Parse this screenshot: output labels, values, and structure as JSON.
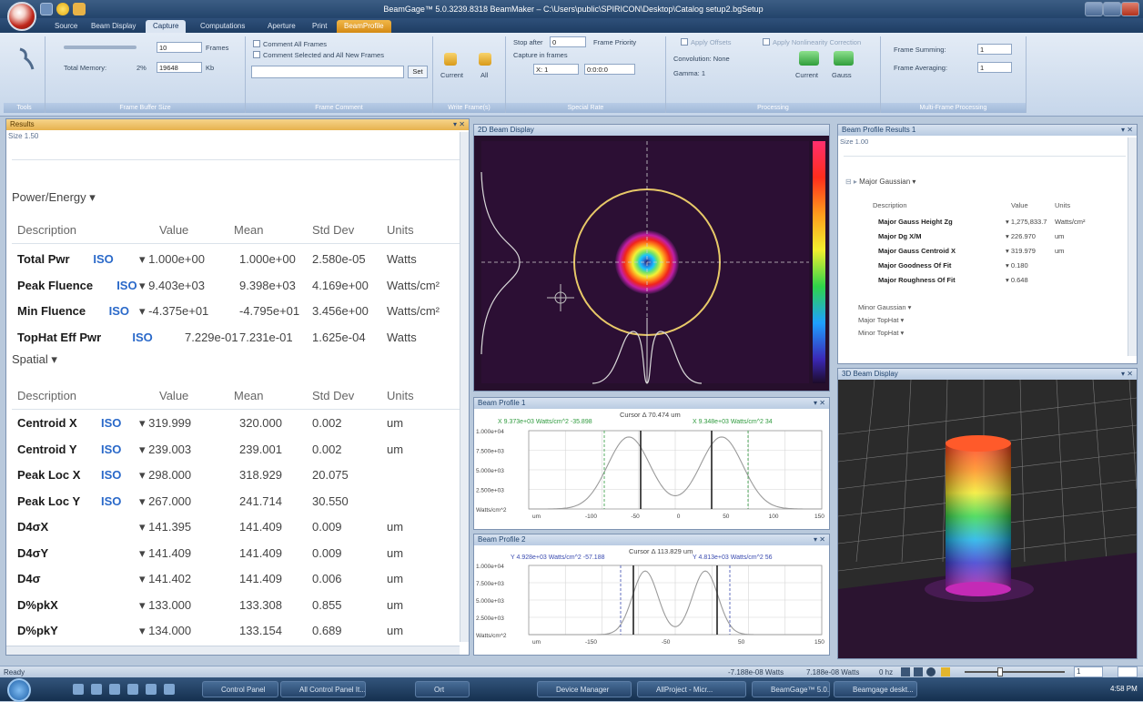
{
  "titlebar": {
    "title": "BeamGage™ 5.0.3239.8318 BeamMaker – C:\\Users\\public\\SPIRICON\\Desktop\\Catalog setup2.bgSetup"
  },
  "tabs": [
    "Source",
    "Beam Display",
    "Capture",
    "Computations",
    "Aperture",
    "Print",
    "BeamProfile"
  ],
  "ribbon": {
    "frames_value": "10",
    "frames_label": "Frames",
    "total_memory_label": "Total Memory:",
    "total_memory_pct": "2%",
    "memory_value": "19648",
    "memory_unit": "Kb",
    "comment_all": "Comment All Frames",
    "comment_selected": "Comment Selected and All New Frames",
    "set_label": "Set",
    "current_label": "Current",
    "all_label": "All",
    "stop_after_label": "Stop after",
    "stop_after_value": "0",
    "frame_priority": "Frame Priority",
    "capture_in_frames": "Capture in frames",
    "x_field": "X: 1",
    "time_field": "0:0:0:0",
    "convolution": "Convolution: None",
    "gamma": "Gamma: 1",
    "apply_offsets": "Apply Offsets",
    "apply_nonlinearity": "Apply Nonlinearity Correction",
    "current_proc": "Current",
    "gauss_proc": "Gauss",
    "frame_summing_label": "Frame Summing:",
    "frame_summing_value": "1",
    "frame_averaging_label": "Frame Averaging:",
    "frame_averaging_value": "1",
    "group_captions": [
      "Tools",
      "Frame Buffer Size",
      "Frame Comment",
      "Write Frame(s)",
      "Special Rate",
      "Processing",
      "Multi-Frame Processing"
    ]
  },
  "results": {
    "title": "Results",
    "size": "Size 1.50",
    "power_section": "Power/Energy ▾",
    "spatial_section": "Spatial ▾",
    "headers": [
      "Description",
      "Value",
      "Mean",
      "Std Dev",
      "Units"
    ],
    "power_rows": [
      {
        "name": "Total Pwr",
        "iso": "ISO",
        "value": "▾ 1.000e+00",
        "mean": "1.000e+00",
        "std": "2.580e-05",
        "units": "Watts"
      },
      {
        "name": "Peak Fluence",
        "iso": "ISO",
        "value": "▾ 9.403e+03",
        "mean": "9.398e+03",
        "std": "4.169e+00",
        "units": "Watts/cm²"
      },
      {
        "name": "Min Fluence",
        "iso": "ISO",
        "value": "▾ -4.375e+01",
        "mean": "-4.795e+01",
        "std": "3.456e+00",
        "units": "Watts/cm²"
      },
      {
        "name": "TopHat Eff Pwr",
        "iso": "ISO",
        "value": "7.229e-01",
        "mean": "7.231e-01",
        "std": "1.625e-04",
        "units": "Watts"
      }
    ],
    "spatial_rows": [
      {
        "name": "Centroid X",
        "iso": "ISO",
        "value": "▾ 319.999",
        "mean": "320.000",
        "std": "0.002",
        "units": "um"
      },
      {
        "name": "Centroid Y",
        "iso": "ISO",
        "value": "▾ 239.003",
        "mean": "239.001",
        "std": "0.002",
        "units": "um"
      },
      {
        "name": "Peak Loc X",
        "iso": "ISO",
        "value": "▾ 298.000",
        "mean": "318.929",
        "std": "20.075",
        "units": ""
      },
      {
        "name": "Peak Loc Y",
        "iso": "ISO",
        "value": "▾ 267.000",
        "mean": "241.714",
        "std": "30.550",
        "units": ""
      },
      {
        "name": "D4σX",
        "iso": "",
        "value": "▾ 141.395",
        "mean": "141.409",
        "std": "0.009",
        "units": "um"
      },
      {
        "name": "D4σY",
        "iso": "",
        "value": "▾ 141.409",
        "mean": "141.409",
        "std": "0.009",
        "units": "um"
      },
      {
        "name": "D4σ",
        "iso": "",
        "value": "▾ 141.402",
        "mean": "141.409",
        "std": "0.006",
        "units": "um"
      },
      {
        "name": "D%pkX",
        "iso": "",
        "value": "▾ 133.000",
        "mean": "133.308",
        "std": "0.855",
        "units": "um"
      },
      {
        "name": "D%pkY",
        "iso": "",
        "value": "▾ 134.000",
        "mean": "133.154",
        "std": "0.689",
        "units": "um"
      }
    ]
  },
  "beam2d": {
    "title": "2D Beam Display"
  },
  "bp1": {
    "title": "Beam Profile 1",
    "cursor": "Cursor Δ 70.474 um",
    "left_readout": "X 9.373e+03 Watts/cm^2  -35.898",
    "right_readout": "X 9.348e+03 Watts/cm^2  34",
    "yticks": [
      "1.000e+04",
      "7.500e+03",
      "5.000e+03",
      "2.500e+03",
      "Watts/cm^2"
    ],
    "xunit": "um",
    "xticks": [
      "-100",
      "-50",
      "0",
      "50",
      "100",
      "150"
    ]
  },
  "bp2": {
    "title": "Beam Profile 2",
    "cursor": "Cursor Δ 113.829 um",
    "left_readout": "Y 4.928e+03 Watts/cm^2  -57.188",
    "right_readout": "Y 4.813e+03 Watts/cm^2  56",
    "yticks": [
      "1.000e+04",
      "7.500e+03",
      "5.000e+03",
      "2.500e+03",
      "Watts/cm^2"
    ],
    "xunit": "um",
    "xticks": [
      "-150",
      "-50",
      "50",
      "150"
    ]
  },
  "bpr": {
    "title": "Beam Profile Results 1",
    "size": "Size 1.00",
    "section": "Major Gaussian ▾",
    "headers": [
      "Description",
      "Value",
      "Units"
    ],
    "rows": [
      {
        "name": "Major Gauss Height Zg",
        "value": "▾ 1,275,833.7",
        "units": "Watts/cm²"
      },
      {
        "name": "Major Dg X/M",
        "value": "▾ 226.970",
        "units": "um"
      },
      {
        "name": "Major Gauss Centroid X",
        "value": "▾ 319.979",
        "units": "um"
      },
      {
        "name": "Major Goodness Of Fit",
        "value": "▾ 0.180",
        "units": ""
      },
      {
        "name": "Major Roughness Of Fit",
        "value": "▾ 0.648",
        "units": ""
      }
    ],
    "subsections": [
      "Minor Gaussian ▾",
      "Major TopHat ▾",
      "Minor TopHat ▾"
    ]
  },
  "beam3d": {
    "title": "3D Beam Display"
  },
  "status": {
    "ready": "Ready",
    "power1": "-7.188e-08 Watts",
    "power2": "7.188e-08 Watts",
    "hz": "0 hz",
    "zoom_value": "1"
  },
  "taskbar": {
    "items": [
      "Control Panel",
      "All Control Panel It...",
      "Ort",
      "Device Manager",
      "AllProject - Micr...",
      "BeamGage™ 5.0...",
      "Beamgage deskt..."
    ],
    "clock": "4:58 PM"
  }
}
